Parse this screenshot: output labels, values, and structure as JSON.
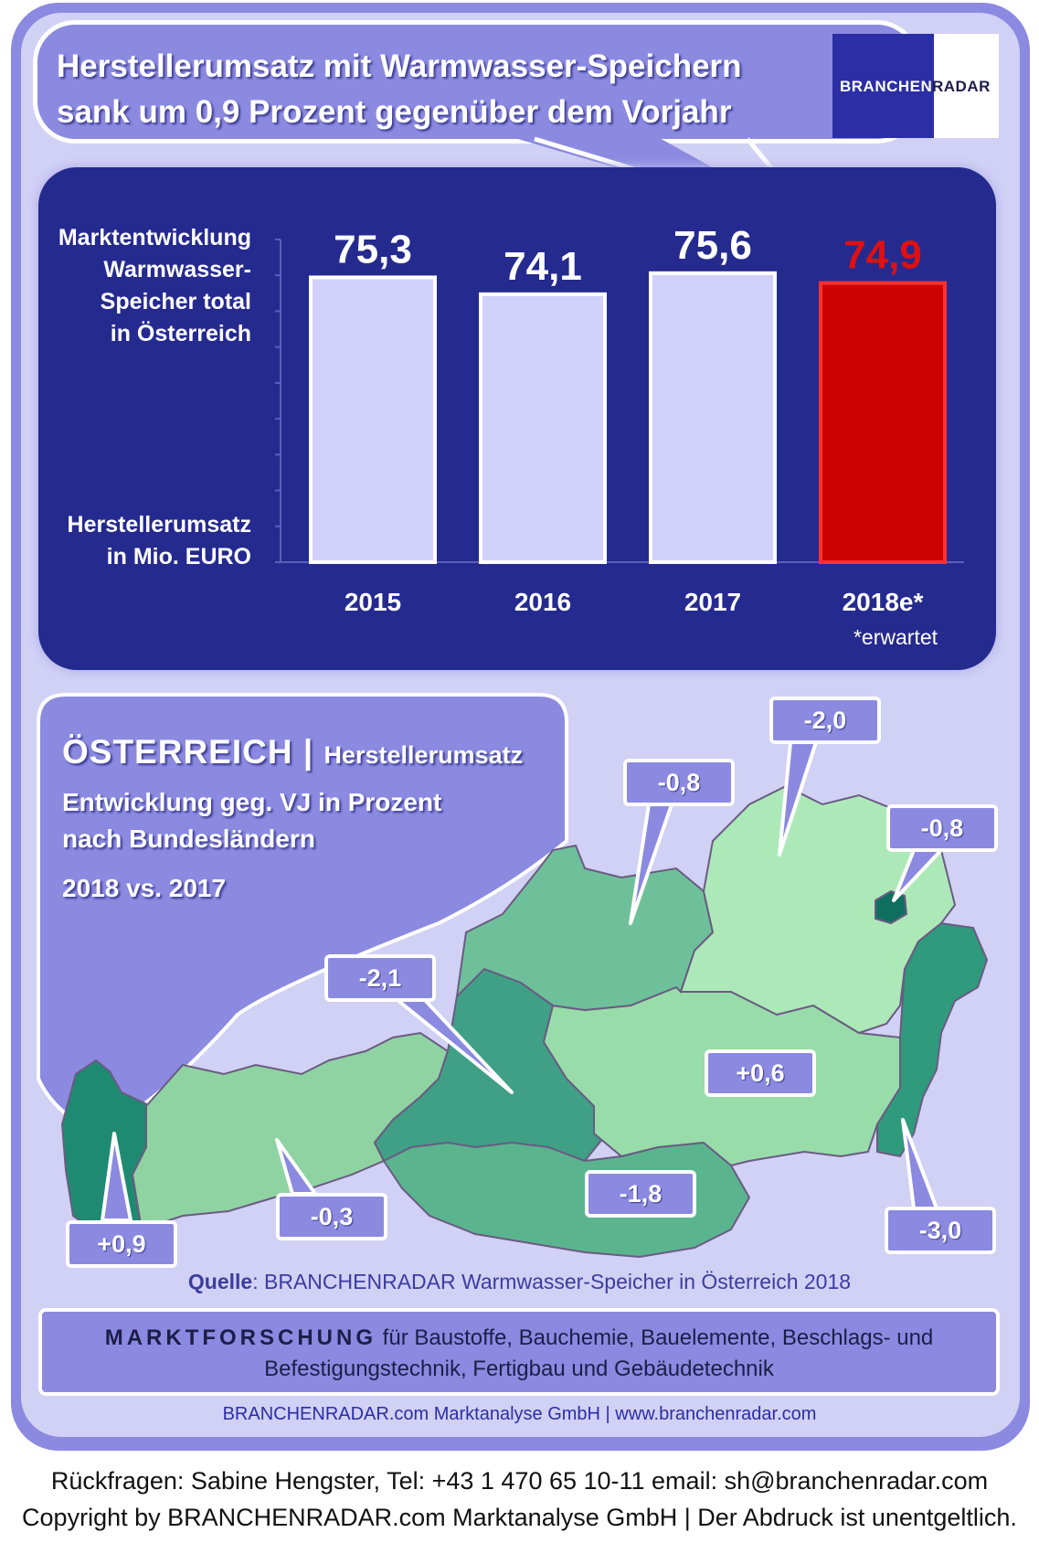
{
  "header": {
    "title_line1": "Herstellerumsatz mit  Warmwasser-Speichern",
    "title_line2": "sank um 0,9 Prozent gegenüber dem Vorjahr"
  },
  "logo": {
    "text_left": "BRANCHEN",
    "text_right": "RADAR"
  },
  "chart_labels": {
    "y_title_lines": [
      "Marktentwicklung",
      "Warmwasser-",
      "Speicher total",
      "in Österreich"
    ],
    "y_unit_lines": [
      "Herstellerumsatz",
      "in Mio. EURO"
    ],
    "footnote": "*erwartet"
  },
  "chart_data": {
    "type": "bar",
    "categories": [
      "2015",
      "2016",
      "2017",
      "2018e*"
    ],
    "values": [
      75.3,
      74.1,
      75.6,
      74.9
    ],
    "value_labels": [
      "75,3",
      "74,1",
      "75,6",
      "74,9"
    ],
    "highlight_index": 3,
    "ylabel": "Herstellerumsatz in Mio. EURO",
    "colors": {
      "bar": "#d1d0fb",
      "bar_highlight": "#cc0000",
      "label_highlight": "#e01010",
      "panel": "#252a8f"
    }
  },
  "map_section": {
    "title": "ÖSTERREICH",
    "separator": "|",
    "subtitle": "Herstellerumsatz",
    "line1": "Entwicklung  geg. VJ in Prozent",
    "line2": "nach Bundesländern",
    "line3": "2018 vs. 2017",
    "states": [
      {
        "name": "Vorarlberg",
        "change": "+0,9",
        "color": "#1f8a72"
      },
      {
        "name": "Tirol",
        "change": "-0,3",
        "color": "#8fd3a3"
      },
      {
        "name": "Salzburg",
        "change": "-2,1",
        "color": "#3fa086"
      },
      {
        "name": "Kärnten",
        "change": "-1,8",
        "color": "#5ab58f"
      },
      {
        "name": "Steiermark",
        "change": "+0,6",
        "color": "#98dcaa"
      },
      {
        "name": "Oberösterreich",
        "change": "-0,8",
        "color": "#6ec09a"
      },
      {
        "name": "Niederösterreich",
        "change": "-2,0",
        "color": "#ade9b8"
      },
      {
        "name": "Wien",
        "change": "-0,8",
        "color": "#0f6f5f"
      },
      {
        "name": "Burgenland",
        "change": "-3,0",
        "color": "#2f9a7c"
      }
    ]
  },
  "source": {
    "label": "Quelle",
    "text": ": BRANCHENRADAR Warmwasser-Speicher in Österreich 2018"
  },
  "marktforschung": {
    "heading": "MARKTFORSCHUNG",
    "text1": " für Baustoffe, Bauchemie, Bauelemente, Beschlags- und",
    "text2": "Befestigungstechnik, Fertigbau und Gebäudetechnik"
  },
  "company_line": "BRANCHENRADAR.com Marktanalyse GmbH | www.branchenradar.com",
  "contact": "Rückfragen: Sabine Hengster, Tel: +43 1 470 65 10-11 email: sh@branchenradar.com",
  "copyright": "Copyright by BRANCHENRADAR.com  Marktanalyse GmbH | Der Abdruck ist unentgeltlich."
}
